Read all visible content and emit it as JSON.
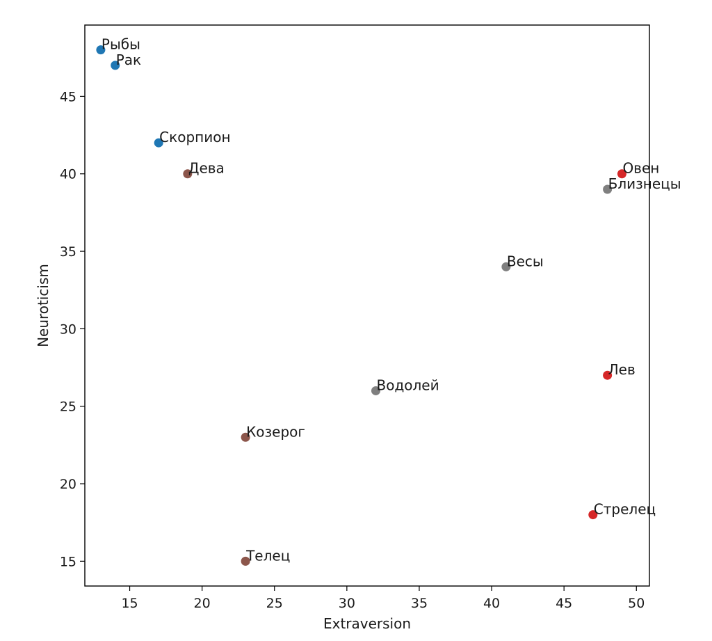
{
  "chart_data": {
    "type": "scatter",
    "xlabel": "Extraversion",
    "ylabel": "Neuroticism",
    "xlim": [
      11.9,
      50.9
    ],
    "ylim": [
      13.4,
      49.6
    ],
    "xticks": [
      15,
      20,
      25,
      30,
      35,
      40,
      45,
      50
    ],
    "yticks": [
      15,
      20,
      25,
      30,
      35,
      40,
      45
    ],
    "grid": false,
    "colors": {
      "water": "#1f77b4",
      "earth": "#8c564b",
      "air": "#7f7f7f",
      "fire": "#d62728"
    },
    "points": [
      {
        "label": "Рыбы",
        "x": 13,
        "y": 48,
        "group": "water"
      },
      {
        "label": "Рак",
        "x": 14,
        "y": 47,
        "group": "water"
      },
      {
        "label": "Скорпион",
        "x": 17,
        "y": 42,
        "group": "water"
      },
      {
        "label": "Дева",
        "x": 19,
        "y": 40,
        "group": "earth"
      },
      {
        "label": "Козерог",
        "x": 23,
        "y": 23,
        "group": "earth"
      },
      {
        "label": "Телец",
        "x": 23,
        "y": 15,
        "group": "earth"
      },
      {
        "label": "Водолей",
        "x": 32,
        "y": 26,
        "group": "air"
      },
      {
        "label": "Весы",
        "x": 41,
        "y": 34,
        "group": "air"
      },
      {
        "label": "Близнецы",
        "x": 48,
        "y": 39,
        "group": "air"
      },
      {
        "label": "Овен",
        "x": 49,
        "y": 40,
        "group": "fire"
      },
      {
        "label": "Лев",
        "x": 48,
        "y": 27,
        "group": "fire"
      },
      {
        "label": "Стрелец",
        "x": 47,
        "y": 18,
        "group": "fire"
      }
    ]
  }
}
